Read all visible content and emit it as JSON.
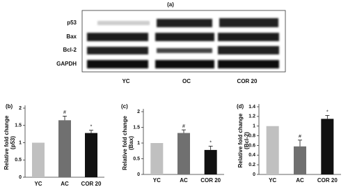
{
  "blot": {
    "label": "(a)",
    "rows": [
      "p53",
      "Bax",
      "Bcl-2",
      "GAPDH"
    ],
    "lanes": [
      "YC",
      "OC",
      "COR 20"
    ]
  },
  "chart_data": [
    {
      "type": "bar",
      "panel": "(b)",
      "ylabel": [
        "Relative fold change",
        "(p53)"
      ],
      "categories": [
        "YC",
        "AC",
        "COR 20"
      ],
      "values": [
        1,
        1.65,
        1.28
      ],
      "errors": [
        0,
        0.12,
        0.08
      ],
      "annotations": [
        null,
        "#",
        "*"
      ],
      "colors": [
        "#c0c0c0",
        "#707070",
        "#111111"
      ],
      "ylim": [
        0,
        2
      ],
      "yticks": [
        0,
        0.5,
        1,
        1.5,
        2
      ]
    },
    {
      "type": "bar",
      "panel": "(c)",
      "ylabel": [
        "Relative fold change",
        "(Bax)"
      ],
      "categories": [
        "YC",
        "AC",
        "COR 20"
      ],
      "values": [
        1,
        1.32,
        0.78
      ],
      "errors": [
        0,
        0.1,
        0.12
      ],
      "annotations": [
        null,
        "#",
        "*"
      ],
      "colors": [
        "#c0c0c0",
        "#707070",
        "#111111"
      ],
      "ylim": [
        0,
        2
      ],
      "yticks": [
        0,
        0.5,
        1,
        1.5,
        2
      ]
    },
    {
      "type": "bar",
      "panel": "(d)",
      "ylabel": [
        "Relative fold change",
        "(Bcl-2)"
      ],
      "categories": [
        "YC",
        "AC",
        "COR 20"
      ],
      "values": [
        1,
        0.58,
        1.15
      ],
      "errors": [
        0,
        0.13,
        0.07
      ],
      "annotations": [
        null,
        "#",
        "*"
      ],
      "colors": [
        "#c0c0c0",
        "#707070",
        "#111111"
      ],
      "ylim": [
        0,
        1.4
      ],
      "yticks": [
        0,
        0.2,
        0.4,
        0.6,
        0.8,
        1,
        1.2,
        1.4
      ]
    }
  ]
}
